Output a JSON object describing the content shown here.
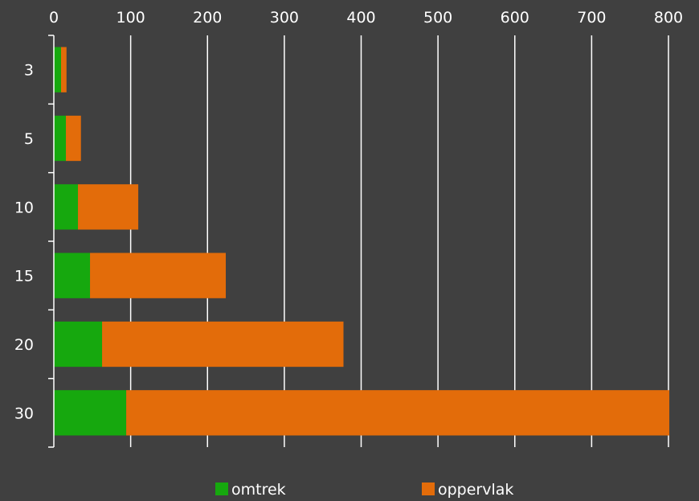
{
  "chart_data": {
    "type": "bar",
    "orientation": "horizontal",
    "stacked": true,
    "categories": [
      "3",
      "5",
      "10",
      "15",
      "20",
      "30"
    ],
    "series": [
      {
        "name": "omtrek",
        "color": "#16a80e",
        "values": [
          9.4,
          15.7,
          31.4,
          47.1,
          62.8,
          94.2
        ]
      },
      {
        "name": "oppervlak",
        "color": "#e36c0a",
        "values": [
          7.1,
          19.6,
          78.5,
          176.7,
          314.2,
          706.9
        ]
      }
    ],
    "xlim": [
      0,
      800
    ],
    "xticks": [
      0,
      100,
      200,
      300,
      400,
      500,
      600,
      700,
      800
    ],
    "x_axis_position": "top",
    "grid": true,
    "legend_position": "bottom",
    "title": "",
    "xlabel": "",
    "ylabel": ""
  }
}
